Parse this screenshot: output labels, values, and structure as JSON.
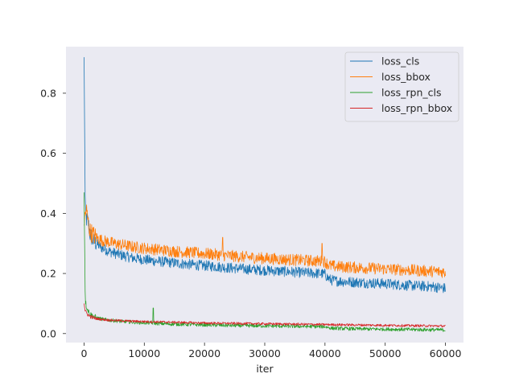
{
  "chart_data": {
    "type": "line",
    "title": "",
    "xlabel": "iter",
    "ylabel": "",
    "xlim": [
      -3000,
      63000
    ],
    "ylim": [
      -0.03,
      0.955
    ],
    "xticks": [
      0,
      10000,
      20000,
      30000,
      40000,
      50000,
      60000
    ],
    "xtick_labels": [
      "0",
      "10000",
      "20000",
      "30000",
      "40000",
      "50000",
      "60000"
    ],
    "yticks": [
      0.0,
      0.2,
      0.4,
      0.6,
      0.8
    ],
    "ytick_labels": [
      "0.0",
      "0.2",
      "0.4",
      "0.6",
      "0.8"
    ],
    "grid": false,
    "legend_position": "top-right",
    "background": "#eaeaf2",
    "series": [
      {
        "name": "loss_cls",
        "color": "#1f77b4",
        "x": [
          0,
          200,
          400,
          700,
          1000,
          1500,
          2000,
          3000,
          4000,
          5000,
          6000,
          7000,
          8000,
          10000,
          12000,
          14000,
          16000,
          18000,
          20000,
          22000,
          24000,
          26000,
          28000,
          30000,
          32000,
          34000,
          36000,
          38000,
          39000,
          40000,
          40500,
          41000,
          42000,
          44000,
          46000,
          48000,
          50000,
          52000,
          54000,
          56000,
          58000,
          60000
        ],
        "y": [
          0.92,
          0.4,
          0.38,
          0.37,
          0.33,
          0.31,
          0.3,
          0.285,
          0.275,
          0.268,
          0.262,
          0.257,
          0.252,
          0.246,
          0.241,
          0.237,
          0.233,
          0.229,
          0.226,
          0.223,
          0.219,
          0.216,
          0.213,
          0.211,
          0.208,
          0.206,
          0.203,
          0.201,
          0.2,
          0.198,
          0.185,
          0.178,
          0.175,
          0.172,
          0.17,
          0.168,
          0.166,
          0.163,
          0.16,
          0.158,
          0.156,
          0.15
        ]
      },
      {
        "name": "loss_bbox",
        "color": "#ff7f0e",
        "x": [
          0,
          200,
          400,
          700,
          1000,
          1500,
          2000,
          3000,
          4000,
          5000,
          6000,
          7000,
          8000,
          10000,
          12000,
          14000,
          16000,
          18000,
          20000,
          22000,
          24000,
          26000,
          28000,
          30000,
          32000,
          34000,
          36000,
          38000,
          39000,
          40000,
          40500,
          41000,
          42000,
          44000,
          46000,
          48000,
          50000,
          52000,
          54000,
          56000,
          58000,
          60000
        ],
        "y": [
          0.36,
          0.4,
          0.41,
          0.37,
          0.34,
          0.33,
          0.32,
          0.31,
          0.305,
          0.3,
          0.296,
          0.293,
          0.289,
          0.284,
          0.28,
          0.276,
          0.272,
          0.269,
          0.266,
          0.263,
          0.259,
          0.256,
          0.253,
          0.25,
          0.248,
          0.246,
          0.244,
          0.242,
          0.241,
          0.24,
          0.23,
          0.225,
          0.223,
          0.221,
          0.219,
          0.217,
          0.215,
          0.213,
          0.211,
          0.209,
          0.207,
          0.205
        ]
      },
      {
        "name": "loss_rpn_cls",
        "color": "#2ca02c",
        "x": [
          0,
          200,
          400,
          700,
          1000,
          1500,
          2000,
          3000,
          4000,
          5000,
          6000,
          8000,
          10000,
          11500,
          12000,
          14000,
          16000,
          18000,
          20000,
          24000,
          28000,
          32000,
          36000,
          40000,
          41000,
          44000,
          48000,
          52000,
          56000,
          60000
        ],
        "y": [
          0.47,
          0.11,
          0.09,
          0.075,
          0.065,
          0.058,
          0.053,
          0.048,
          0.045,
          0.043,
          0.041,
          0.038,
          0.036,
          0.035,
          0.034,
          0.032,
          0.031,
          0.03,
          0.029,
          0.027,
          0.026,
          0.025,
          0.024,
          0.023,
          0.018,
          0.016,
          0.015,
          0.014,
          0.013,
          0.012
        ]
      },
      {
        "name": "loss_rpn_bbox",
        "color": "#d62728",
        "x": [
          0,
          200,
          400,
          700,
          1000,
          1500,
          2000,
          3000,
          4000,
          5000,
          6000,
          8000,
          10000,
          12000,
          14000,
          16000,
          18000,
          20000,
          24000,
          28000,
          32000,
          36000,
          40000,
          44000,
          48000,
          52000,
          56000,
          60000
        ],
        "y": [
          0.1,
          0.075,
          0.068,
          0.062,
          0.057,
          0.053,
          0.05,
          0.047,
          0.045,
          0.044,
          0.043,
          0.041,
          0.04,
          0.039,
          0.038,
          0.037,
          0.036,
          0.035,
          0.034,
          0.033,
          0.032,
          0.031,
          0.03,
          0.029,
          0.028,
          0.027,
          0.026,
          0.025
        ]
      }
    ]
  }
}
